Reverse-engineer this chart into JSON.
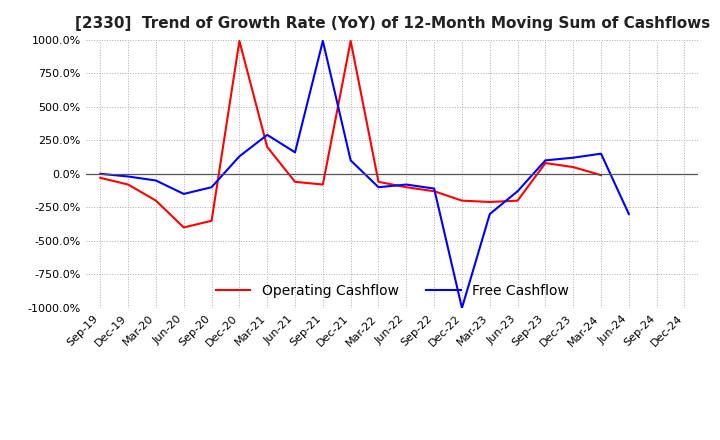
{
  "title": "[2330]  Trend of Growth Rate (YoY) of 12-Month Moving Sum of Cashflows",
  "title_fontsize": 11,
  "ylim": [
    -1000,
    1000
  ],
  "yticks": [
    -1000,
    -750,
    -500,
    -250,
    0,
    250,
    500,
    750,
    1000
  ],
  "background_color": "#ffffff",
  "grid_color": "#aaaaaa",
  "grid_linestyle": "dotted",
  "operating_color": "#ff0000",
  "free_color": "#0000ff",
  "legend_labels": [
    "Operating Cashflow",
    "Free Cashflow"
  ],
  "dates": [
    "Sep-19",
    "Dec-19",
    "Mar-20",
    "Jun-20",
    "Sep-20",
    "Dec-20",
    "Mar-21",
    "Jun-21",
    "Sep-21",
    "Dec-21",
    "Mar-22",
    "Jun-22",
    "Sep-22",
    "Dec-22",
    "Mar-23",
    "Jun-23",
    "Sep-23",
    "Dec-23",
    "Mar-24",
    "Jun-24",
    "Sep-24",
    "Dec-24"
  ],
  "operating_cashflow": [
    -30,
    -80,
    -200,
    -400,
    -350,
    990,
    200,
    -60,
    -80,
    990,
    -60,
    -100,
    -130,
    -200,
    -210,
    -200,
    80,
    50,
    -10,
    null,
    null,
    null
  ],
  "free_cashflow": [
    0,
    -20,
    -50,
    -150,
    -100,
    130,
    290,
    160,
    990,
    100,
    -100,
    -80,
    -110,
    -1000,
    -300,
    -130,
    100,
    120,
    150,
    -300,
    null,
    null
  ]
}
